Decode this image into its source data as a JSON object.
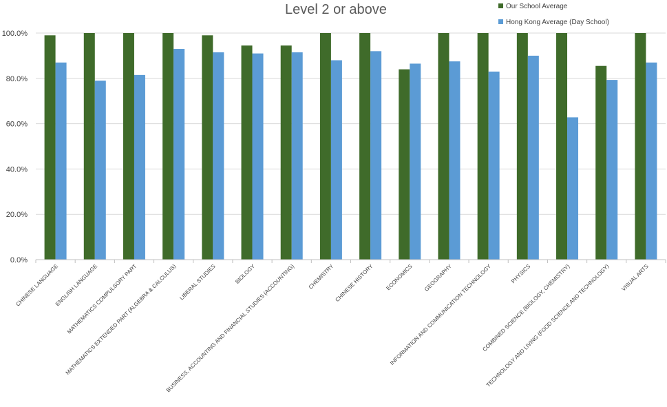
{
  "chart_data": {
    "type": "bar",
    "title": "Level 2 or above",
    "xlabel": "",
    "ylabel": "",
    "ylim": [
      0,
      1
    ],
    "yticks": [
      0,
      0.2,
      0.4,
      0.6,
      0.8,
      1.0
    ],
    "ytick_labels": [
      "0.0%",
      "20.0%",
      "40.0%",
      "60.0%",
      "80.0%",
      "100.0%"
    ],
    "grid": true,
    "legend_position": "top-right",
    "categories": [
      "CHINESE LANGUAGE",
      "ENGLISH LANGUAGE",
      "MATHEMATICS COMPULSORY PART",
      "MATHEMATICS EXTENDED PART (ALGEBRA & CALCULUS)",
      "LIBERAL STUDIES",
      "BIOLOGY",
      "BUSINESS, ACCOUNTING AND FINANCIAL STUDIES (ACCOUNTING)",
      "CHEMISTRY",
      "CHINESE HISTORY",
      "ECONOMICS",
      "GEOGRAPHY",
      "INFORMATION AND COMMUNICATION TECHNOLOGY",
      "PHYSICS",
      "COMBINED SCIENCE (BIOLOGY, CHEMISTRY)",
      "TECHNOLOGY AND LIVING (FOOD SCIENCE AND TECHNOLOGY)",
      "VISUAL ARTS"
    ],
    "series": [
      {
        "name": "Our School Average",
        "color": "#3f6b2a",
        "values": [
          0.99,
          1.0,
          1.0,
          1.0,
          0.99,
          0.945,
          0.945,
          1.0,
          1.0,
          0.84,
          1.0,
          1.0,
          1.0,
          1.0,
          0.855,
          1.0
        ]
      },
      {
        "name": "Hong Kong Average (Day School)",
        "color": "#5b9bd5",
        "values": [
          0.87,
          0.79,
          0.815,
          0.93,
          0.915,
          0.91,
          0.915,
          0.88,
          0.92,
          0.865,
          0.875,
          0.83,
          0.9,
          0.628,
          0.793,
          0.87
        ]
      }
    ]
  }
}
